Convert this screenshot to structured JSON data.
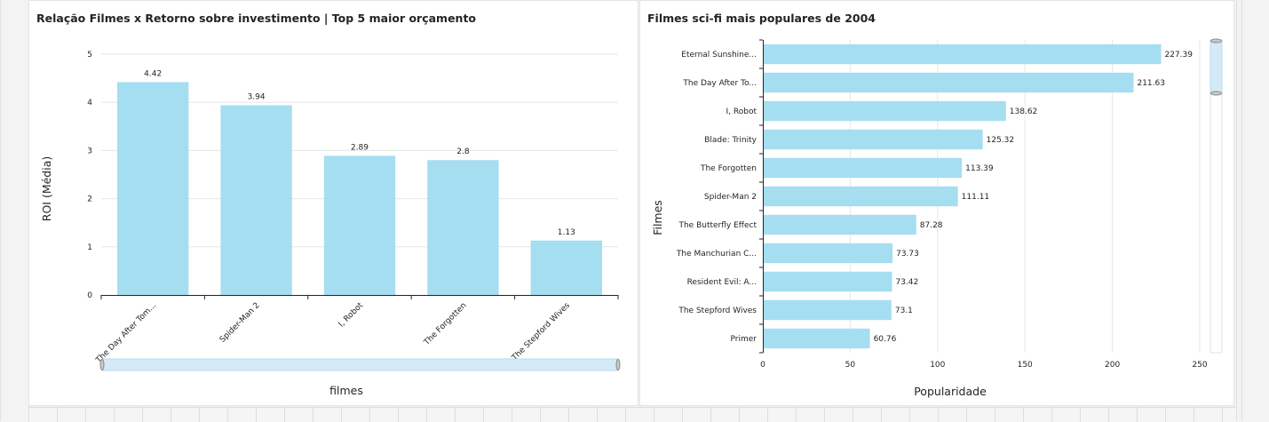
{
  "charts": [
    {
      "title": "Relação Filmes x Retorno sobre investimento | Top 5 maior orçamento",
      "chart_data": {
        "type": "bar",
        "orientation": "vertical",
        "categories": [
          "The Day After Tom...",
          "Spider-Man 2",
          "I, Robot",
          "The Forgotten",
          "The Stepford Wives"
        ],
        "values": [
          4.42,
          3.94,
          2.89,
          2.8,
          1.13
        ],
        "data_labels": [
          "4.42",
          "3.94",
          "2.89",
          "2.8",
          "1.13"
        ],
        "xlabel": "filmes",
        "ylabel": "ROI (Média)",
        "ylim": [
          0,
          5
        ],
        "yticks": [
          "0",
          "1",
          "2",
          "3",
          "4",
          "5"
        ],
        "grid": true,
        "bar_color": "#a5def0"
      }
    },
    {
      "title": "Filmes sci-fi mais populares de 2004",
      "chart_data": {
        "type": "bar",
        "orientation": "horizontal",
        "categories": [
          "Eternal Sunshine...",
          "The Day After To...",
          "I, Robot",
          "Blade: Trinity",
          "The Forgotten",
          "Spider-Man 2",
          "The Butterfly Effect",
          "The Manchurian C...",
          "Resident Evil: A...",
          "The Stepford Wives",
          "Primer"
        ],
        "values": [
          227.39,
          211.63,
          138.62,
          125.32,
          113.39,
          111.11,
          87.28,
          73.73,
          73.42,
          73.1,
          60.76
        ],
        "data_labels": [
          "227.39",
          "211.63",
          "138.62",
          "125.32",
          "113.39",
          "111.11",
          "87.28",
          "73.73",
          "73.42",
          "73.1",
          "60.76"
        ],
        "xlabel": "Popularidade",
        "ylabel": "Filmes",
        "xlim": [
          0,
          250
        ],
        "xticks": [
          "0",
          "50",
          "100",
          "150",
          "200",
          "250"
        ],
        "grid": true,
        "bar_color": "#a5def0"
      }
    }
  ]
}
